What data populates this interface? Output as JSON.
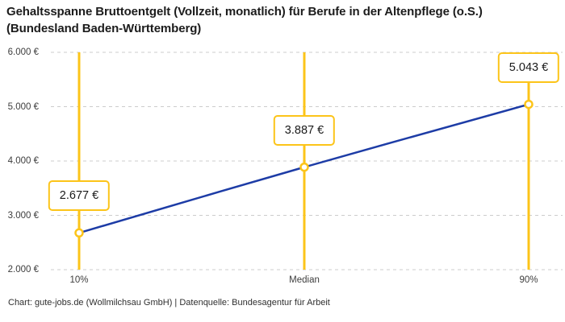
{
  "header": {
    "title_line1": "Gehaltsspanne Bruttoentgelt (Vollzeit, monatlich) für Berufe in der Altenpflege (o.S.)",
    "title_line2": "(Bundesland Baden-Württemberg)"
  },
  "footer": {
    "credit": "Chart: gute-jobs.de (Wollmilchsau GmbH) | Datenquelle: Bundesagentur für Arbeit"
  },
  "colors": {
    "accent_yellow": "#FCC419",
    "line_blue": "#1D3CA6",
    "grid_gray": "#CCCCCC",
    "marker_fill": "#FFFFFF"
  },
  "chart_data": {
    "type": "line",
    "title": "Gehaltsspanne Bruttoentgelt (Vollzeit, monatlich) für Berufe in der Altenpflege (o.S.) (Bundesland Baden-Württemberg)",
    "categories": [
      "10%",
      "Median",
      "90%"
    ],
    "values": [
      2677,
      3887,
      5043
    ],
    "point_labels": [
      "2.677 €",
      "3.887 €",
      "5.043 €"
    ],
    "y_ticks": [
      {
        "value": 2000,
        "label": "2.000 €"
      },
      {
        "value": 3000,
        "label": "3.000 €"
      },
      {
        "value": 4000,
        "label": "4.000 €"
      },
      {
        "value": 5000,
        "label": "5.000 €"
      },
      {
        "value": 6000,
        "label": "6.000 €"
      }
    ],
    "ylim": [
      2000,
      6000
    ],
    "xlabel": "",
    "ylabel": "",
    "grid": "horizontal-dashed",
    "legend": "none",
    "annotations": "value boxes above each point, vertical rule per category"
  }
}
